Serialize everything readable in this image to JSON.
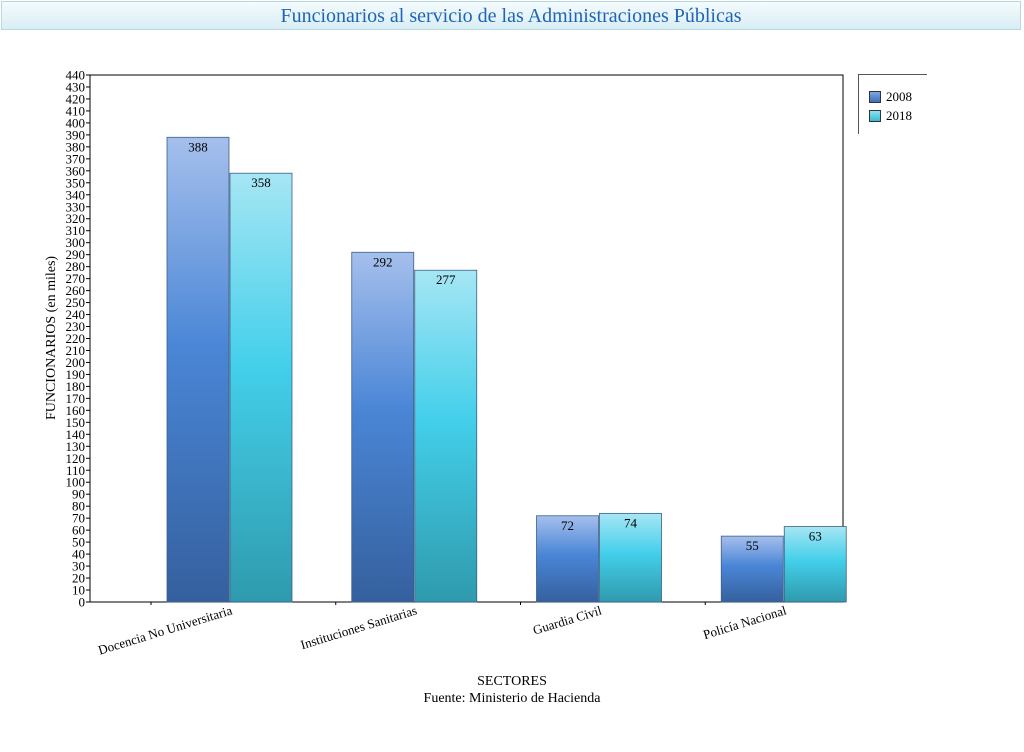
{
  "page": {
    "title": "Funcionarios al servicio de las Administraciones Públicas",
    "source": "Fuente: Ministerio de Hacienda"
  },
  "chart_data": {
    "type": "bar",
    "title": "Funcionarios al servicio de las Administraciones Públicas",
    "xlabel": "SECTORES",
    "ylabel": "FUNCIONARIOS (en miles)",
    "categories": [
      "Docencia No Universitaria",
      "Instituciones Sanitarias",
      "Guardia Civil",
      "Policía Nacional"
    ],
    "series": [
      {
        "name": "2008",
        "values": [
          388,
          292,
          72,
          55
        ],
        "color": "#4a7fcf"
      },
      {
        "name": "2018",
        "values": [
          358,
          277,
          74,
          63
        ],
        "color": "#45cfe6"
      }
    ],
    "ylim": [
      0,
      440
    ],
    "ytick_step": 10,
    "legend": "top-right",
    "grid": false
  }
}
